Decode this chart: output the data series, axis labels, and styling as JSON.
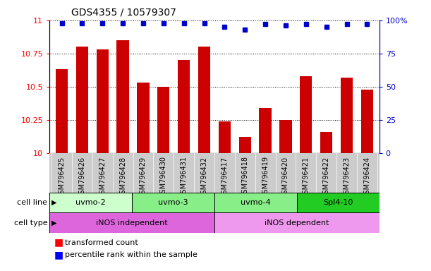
{
  "title": "GDS4355 / 10579307",
  "samples": [
    "GSM796425",
    "GSM796426",
    "GSM796427",
    "GSM796428",
    "GSM796429",
    "GSM796430",
    "GSM796431",
    "GSM796432",
    "GSM796417",
    "GSM796418",
    "GSM796419",
    "GSM796420",
    "GSM796421",
    "GSM796422",
    "GSM796423",
    "GSM796424"
  ],
  "bar_values": [
    10.63,
    10.8,
    10.78,
    10.85,
    10.53,
    10.5,
    10.7,
    10.8,
    10.24,
    10.12,
    10.34,
    10.25,
    10.58,
    10.16,
    10.57,
    10.48
  ],
  "percentile_values": [
    98,
    98,
    98,
    98,
    98,
    98,
    98,
    98,
    95,
    93,
    97,
    96,
    97,
    95,
    97,
    97
  ],
  "ylim_left": [
    10,
    11
  ],
  "ylim_right": [
    0,
    100
  ],
  "yticks_left": [
    10,
    10.25,
    10.5,
    10.75,
    11
  ],
  "yticks_right": [
    0,
    25,
    50,
    75,
    100
  ],
  "bar_color": "#cc0000",
  "dot_color": "#0000cc",
  "bar_width": 0.6,
  "cell_lines": [
    {
      "label": "uvmo-2",
      "start": 0,
      "end": 3,
      "color": "#ccffcc"
    },
    {
      "label": "uvmo-3",
      "start": 4,
      "end": 7,
      "color": "#88ee88"
    },
    {
      "label": "uvmo-4",
      "start": 8,
      "end": 11,
      "color": "#88ee88"
    },
    {
      "label": "Spl4-10",
      "start": 12,
      "end": 15,
      "color": "#22cc22"
    }
  ],
  "cell_types": [
    {
      "label": "iNOS independent",
      "start": 0,
      "end": 7,
      "color": "#dd66dd"
    },
    {
      "label": "iNOS dependent",
      "start": 8,
      "end": 15,
      "color": "#ee99ee"
    }
  ],
  "cell_line_row_label": "cell line",
  "cell_type_row_label": "cell type",
  "legend_red_label": "transformed count",
  "legend_blue_label": "percentile rank within the sample",
  "grid_style": "dotted",
  "background_color": "#ffffff",
  "xtick_bg_color": "#cccccc"
}
